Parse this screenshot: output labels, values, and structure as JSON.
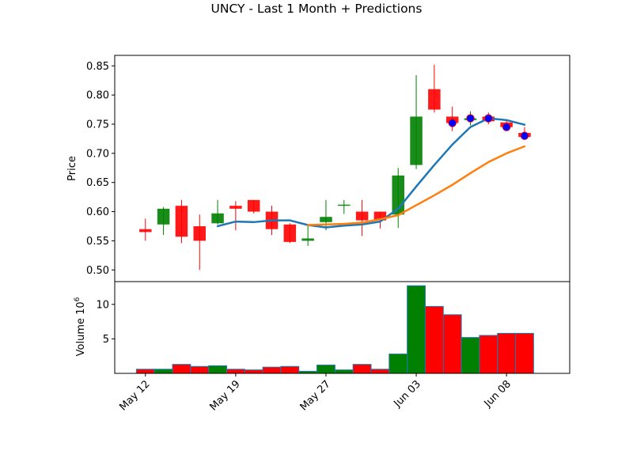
{
  "chart_data": {
    "type": "candlestick",
    "title": "UNCY - Last 1 Month + Predictions",
    "price_panel": {
      "ylabel": "Price",
      "ylim": [
        0.48,
        0.868
      ],
      "yticks": [
        "0.50",
        "0.55",
        "0.60",
        "0.65",
        "0.70",
        "0.75",
        "0.80",
        "0.85"
      ],
      "ytick_values": [
        0.5,
        0.55,
        0.6,
        0.65,
        0.7,
        0.75,
        0.8,
        0.85
      ]
    },
    "volume_panel": {
      "ylabel": "Volume",
      "ylabel_exponent": "10",
      "ylabel_exponent_power": "6",
      "ylim": [
        0,
        13.3
      ],
      "yticks": [
        "5",
        "10"
      ],
      "ytick_values": [
        5,
        10
      ]
    },
    "xaxis": {
      "xlim": [
        -1.7,
        23.5
      ],
      "ticks": [
        {
          "label": "May 12",
          "index": 0
        },
        {
          "label": "May 19",
          "index": 5
        },
        {
          "label": "May 27",
          "index": 10
        },
        {
          "label": "Jun 03",
          "index": 15
        },
        {
          "label": "Jun 08",
          "index": 20
        }
      ]
    },
    "candles": [
      {
        "date": "May 12",
        "open": 0.57,
        "high": 0.588,
        "low": 0.55,
        "close": 0.565,
        "volume": 0.6
      },
      {
        "date": "May 13",
        "open": 0.578,
        "high": 0.608,
        "low": 0.56,
        "close": 0.605,
        "volume": 0.6
      },
      {
        "date": "May 14",
        "open": 0.61,
        "high": 0.62,
        "low": 0.546,
        "close": 0.557,
        "volume": 1.3
      },
      {
        "date": "May 15",
        "open": 0.575,
        "high": 0.595,
        "low": 0.5,
        "close": 0.55,
        "volume": 1.0
      },
      {
        "date": "May 16",
        "open": 0.58,
        "high": 0.62,
        "low": 0.578,
        "close": 0.597,
        "volume": 1.1
      },
      {
        "date": "May 19",
        "open": 0.61,
        "high": 0.618,
        "low": 0.568,
        "close": 0.605,
        "volume": 0.6
      },
      {
        "date": "May 20",
        "open": 0.62,
        "high": 0.62,
        "low": 0.597,
        "close": 0.6,
        "volume": 0.5
      },
      {
        "date": "May 21",
        "open": 0.6,
        "high": 0.61,
        "low": 0.56,
        "close": 0.57,
        "volume": 0.9
      },
      {
        "date": "May 22",
        "open": 0.578,
        "high": 0.58,
        "low": 0.546,
        "close": 0.548,
        "volume": 1.0
      },
      {
        "date": "May 23",
        "open": 0.55,
        "high": 0.577,
        "low": 0.541,
        "close": 0.554,
        "volume": 0.3
      },
      {
        "date": "May 27",
        "open": 0.582,
        "high": 0.62,
        "low": 0.568,
        "close": 0.591,
        "volume": 1.2
      },
      {
        "date": "May 28",
        "open": 0.61,
        "high": 0.62,
        "low": 0.596,
        "close": 0.612,
        "volume": 0.5
      },
      {
        "date": "May 29",
        "open": 0.6,
        "high": 0.62,
        "low": 0.558,
        "close": 0.585,
        "volume": 1.3
      },
      {
        "date": "May 30",
        "open": 0.6,
        "high": 0.6,
        "low": 0.571,
        "close": 0.585,
        "volume": 0.6
      },
      {
        "date": "Jun 02",
        "open": 0.595,
        "high": 0.675,
        "low": 0.572,
        "close": 0.662,
        "volume": 2.8
      },
      {
        "date": "Jun 03",
        "open": 0.68,
        "high": 0.834,
        "low": 0.673,
        "close": 0.763,
        "volume": 12.7
      },
      {
        "date": "Jun 04",
        "open": 0.81,
        "high": 0.852,
        "low": 0.77,
        "close": 0.775,
        "volume": 9.7
      },
      {
        "date": "Jun 05",
        "open": 0.763,
        "high": 0.78,
        "low": 0.738,
        "close": 0.752,
        "volume": 8.5
      },
      {
        "date": "Jun 06",
        "open": 0.757,
        "high": 0.772,
        "low": 0.748,
        "close": 0.76,
        "volume": 5.2
      },
      {
        "date": "Jun 07",
        "open": 0.763,
        "high": 0.77,
        "low": 0.75,
        "close": 0.755,
        "volume": 5.5
      },
      {
        "date": "Jun 08",
        "open": 0.753,
        "high": 0.758,
        "low": 0.74,
        "close": 0.745,
        "volume": 5.8
      },
      {
        "date": "Jun 09",
        "open": 0.735,
        "high": 0.745,
        "low": 0.726,
        "close": 0.728,
        "volume": 5.8
      }
    ],
    "moving_averages": [
      {
        "color": "#1f77b4",
        "x": [
          4,
          5,
          6,
          7,
          8,
          9,
          10,
          11,
          12,
          13,
          14,
          15,
          16,
          17,
          18,
          19,
          20,
          21
        ],
        "y": [
          0.575,
          0.583,
          0.582,
          0.585,
          0.585,
          0.577,
          0.573,
          0.576,
          0.578,
          0.583,
          0.605,
          0.643,
          0.68,
          0.715,
          0.745,
          0.76,
          0.757,
          0.749
        ]
      },
      {
        "color": "#ff7f0e",
        "x": [
          9,
          10,
          11,
          12,
          13,
          14,
          15,
          16,
          17,
          18,
          19,
          20,
          21
        ],
        "y": [
          0.577,
          0.578,
          0.579,
          0.581,
          0.587,
          0.594,
          0.611,
          0.628,
          0.646,
          0.666,
          0.685,
          0.7,
          0.712
        ]
      }
    ],
    "predictions": {
      "color": "#0000ff",
      "x": [
        17,
        18,
        19,
        20,
        21
      ],
      "y": [
        0.752,
        0.76,
        0.76,
        0.745,
        0.73
      ]
    },
    "colors": {
      "up": "#008000",
      "down": "#ff0000",
      "volume_edge": "#1f77b4",
      "prediction_edge": "#ff0000"
    }
  }
}
